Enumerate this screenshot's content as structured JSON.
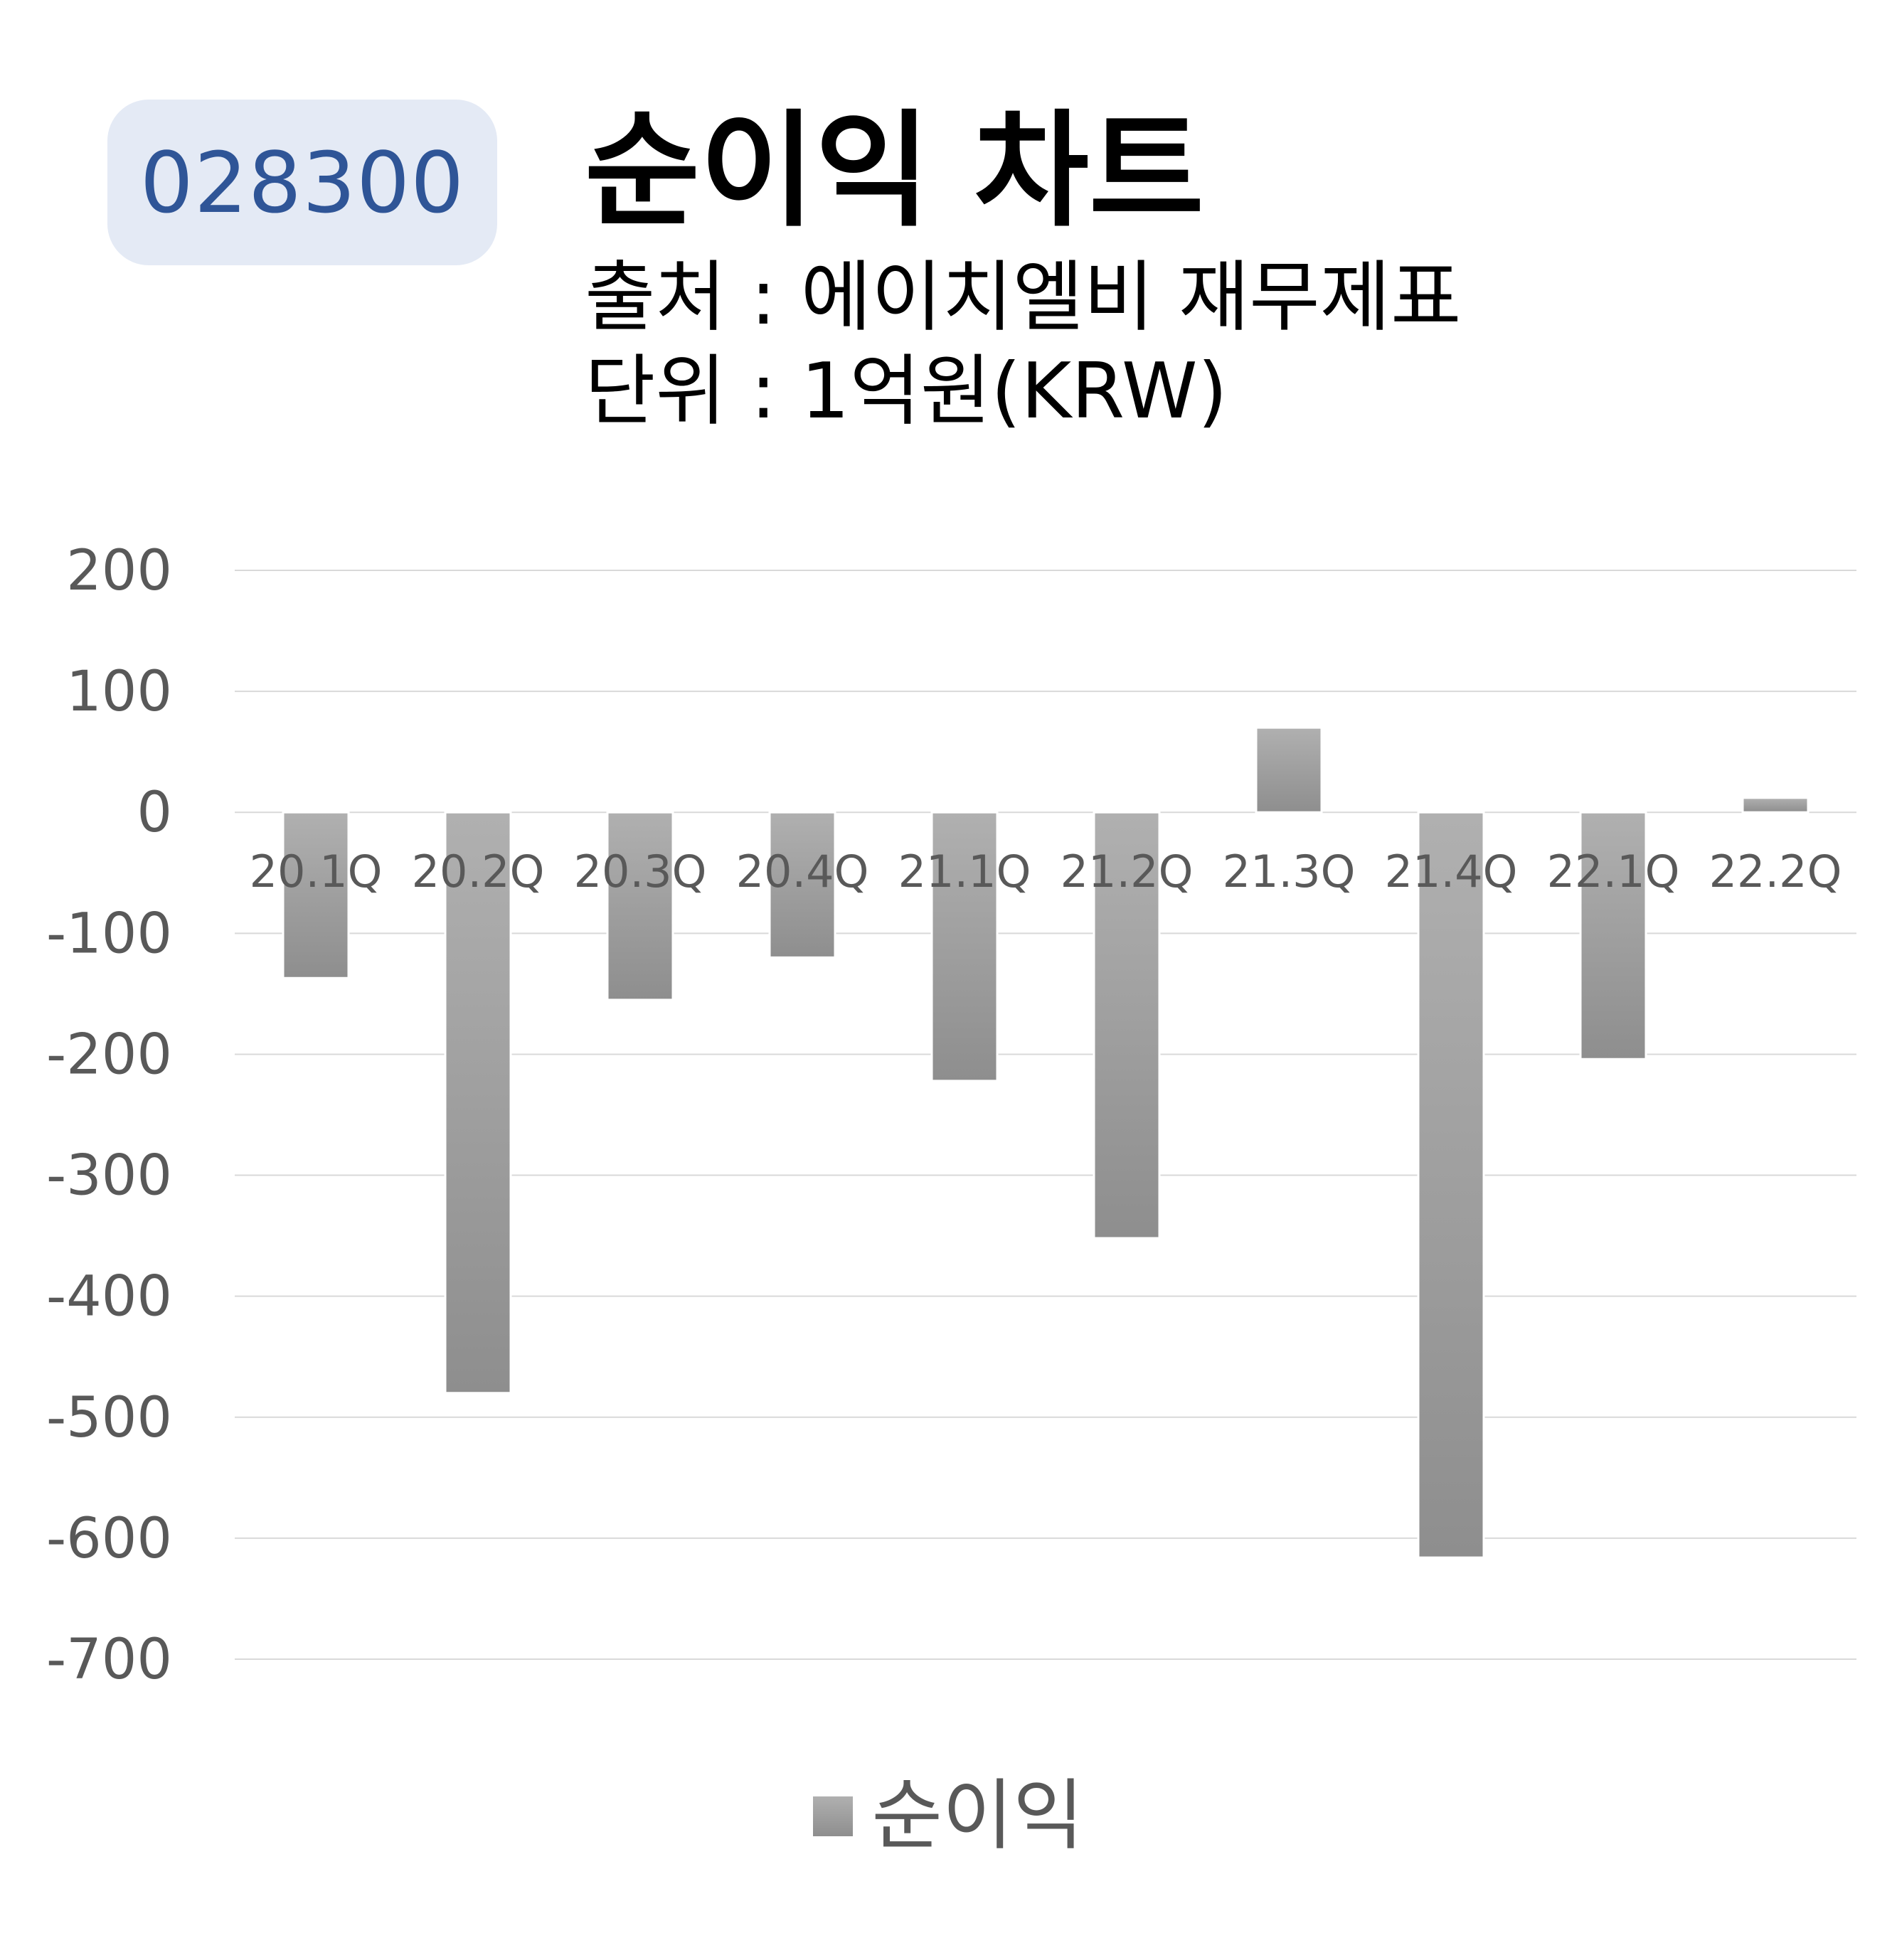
{
  "badge": {
    "code": "028300"
  },
  "header": {
    "title": "순이익 차트",
    "source": "출처 : 에이치엘비 재무제표",
    "unit": "단위 : 1억원(KRW)"
  },
  "colors": {
    "badge_bg": "#e4eaf5",
    "badge_text": "#2f5597",
    "bar_top": "#b0b0b0",
    "bar_bottom": "#8e8e8e",
    "grid": "#d9d9d9",
    "axis_text": "#595959"
  },
  "chart_data": {
    "type": "bar",
    "title": "순이익 차트",
    "categories": [
      "20.1Q",
      "20.2Q",
      "20.3Q",
      "20.4Q",
      "21.1Q",
      "21.2Q",
      "21.3Q",
      "21.4Q",
      "22.1Q",
      "22.2Q"
    ],
    "series": [
      {
        "name": "순이익",
        "values": [
          -137,
          -480,
          -155,
          -120,
          -222,
          -352,
          70,
          -616,
          -204,
          12
        ]
      }
    ],
    "ylim": [
      -700,
      200
    ],
    "yticks": [
      "200",
      "100",
      "0",
      "-100",
      "-200",
      "-300",
      "-400",
      "-500",
      "-600",
      "-700"
    ],
    "ytick_values": [
      200,
      100,
      0,
      -100,
      -200,
      -300,
      -400,
      -500,
      -600,
      -700
    ],
    "grid": true,
    "legend": "bottom"
  }
}
